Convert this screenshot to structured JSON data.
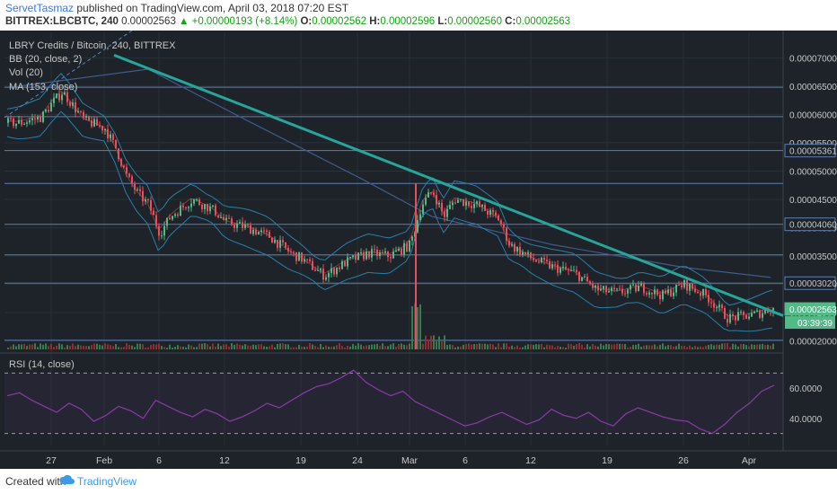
{
  "header": {
    "author": "ServetTasmaz",
    "published": "published on TradingView.com, April 03, 2018 07:20 EST",
    "symbol_interval": "BITTREX:LBCBTC, 240",
    "price": "0.00002563",
    "change": "▲ +0.00000193 (+8.14%)",
    "o_label": "O:",
    "o": "0.00002562",
    "h_label": "H:",
    "h": "0.00002596",
    "l_label": "L:",
    "l": "0.00002560",
    "c_label": "C:",
    "c": "0.00002563"
  },
  "legend": {
    "title": "LBRY Credits / Bitcoin, 240, BITTREX",
    "bb": "BB (20, close, 2)",
    "vol": "Vol (20)",
    "ma": "MA (153, close)",
    "rsi": "RSI (14, close)"
  },
  "footer": {
    "created": "Created with",
    "brand": "TradingView"
  },
  "price_axis": {
    "ticks": [
      "0.00007000",
      "0.00006500",
      "0.00006000",
      "0.00005500",
      "0.00005000",
      "0.00004500",
      "0.00004000",
      "0.00003500",
      "0.00003000",
      "0.00002500",
      "0.00002000"
    ],
    "boxes": [
      {
        "value": 5.361e-05,
        "label": "0.00005361",
        "style": "line"
      },
      {
        "value": 4.06e-05,
        "label": "0.00004060",
        "style": "line"
      },
      {
        "value": 3.02e-05,
        "label": "0.00003020",
        "style": "line"
      },
      {
        "value": 2.563e-05,
        "label": "0.00002563",
        "style": "price"
      }
    ],
    "countdown": "03:39:39"
  },
  "rsi_axis": {
    "ticks": [
      "60.0000",
      "40.0000"
    ]
  },
  "time_axis": {
    "labels": [
      "27",
      "Feb",
      "6",
      "12",
      "19",
      "24",
      "Mar",
      "6",
      "12",
      "19",
      "26",
      "Apr"
    ]
  },
  "chart_data": {
    "type": "candlestick",
    "symbol": "BITTREX:LBCBTC",
    "interval": "240",
    "ylim": [
      1.85e-05,
      7.45e-05
    ],
    "horizontal_levels": [
      6.48e-05,
      5.96e-05,
      5.361e-05,
      4.78e-05,
      4.06e-05,
      3.52e-05,
      3.02e-05,
      2.01e-05
    ],
    "trendline": {
      "from": {
        "x": "Jan 27",
        "y": 7.48e-05
      },
      "to": {
        "x": "Apr 3",
        "y": 2.53e-05
      }
    },
    "price_path": [
      {
        "x": "Jan 24",
        "y": 5.85e-05
      },
      {
        "x": "Jan 26",
        "y": 5.95e-05
      },
      {
        "x": "Jan 27",
        "y": 6.2e-05
      },
      {
        "x": "Jan 28",
        "y": 6.4e-05
      },
      {
        "x": "Jan 30",
        "y": 5.9e-05
      },
      {
        "x": "Feb 1",
        "y": 5.75e-05
      },
      {
        "x": "Feb 2",
        "y": 5.4e-05
      },
      {
        "x": "Feb 3",
        "y": 4.9e-05
      },
      {
        "x": "Feb 4",
        "y": 4.6e-05
      },
      {
        "x": "Feb 5",
        "y": 4.4e-05
      },
      {
        "x": "Feb 6",
        "y": 3.9e-05
      },
      {
        "x": "Feb 7",
        "y": 4.2e-05
      },
      {
        "x": "Feb 9",
        "y": 4.5e-05
      },
      {
        "x": "Feb 11",
        "y": 4.3e-05
      },
      {
        "x": "Feb 12",
        "y": 4.1e-05
      },
      {
        "x": "Feb 14",
        "y": 4e-05
      },
      {
        "x": "Feb 16",
        "y": 3.85e-05
      },
      {
        "x": "Feb 18",
        "y": 3.55e-05
      },
      {
        "x": "Feb 19",
        "y": 3.45e-05
      },
      {
        "x": "Feb 21",
        "y": 3.15e-05
      },
      {
        "x": "Feb 23",
        "y": 3.4e-05
      },
      {
        "x": "Feb 25",
        "y": 3.55e-05
      },
      {
        "x": "Feb 27",
        "y": 3.5e-05
      },
      {
        "x": "Feb 28",
        "y": 3.6e-05
      },
      {
        "x": "Mar 1",
        "y": 3.7e-05
      },
      {
        "x": "Mar 2",
        "y": 4.4e-05
      },
      {
        "x": "Mar 3",
        "y": 4.65e-05
      },
      {
        "x": "Mar 4",
        "y": 4.2e-05
      },
      {
        "x": "Mar 5",
        "y": 4.5e-05
      },
      {
        "x": "Mar 7",
        "y": 4.4e-05
      },
      {
        "x": "Mar 9",
        "y": 4.15e-05
      },
      {
        "x": "Mar 10",
        "y": 3.7e-05
      },
      {
        "x": "Mar 12",
        "y": 3.45e-05
      },
      {
        "x": "Mar 14",
        "y": 3.3e-05
      },
      {
        "x": "Mar 16",
        "y": 3.2e-05
      },
      {
        "x": "Mar 18",
        "y": 2.9e-05
      },
      {
        "x": "Mar 20",
        "y": 2.85e-05
      },
      {
        "x": "Mar 22",
        "y": 2.95e-05
      },
      {
        "x": "Mar 24",
        "y": 2.8e-05
      },
      {
        "x": "Mar 26",
        "y": 3e-05
      },
      {
        "x": "Mar 28",
        "y": 2.8e-05
      },
      {
        "x": "Mar 30",
        "y": 2.4e-05
      },
      {
        "x": "Apr 1",
        "y": 2.45e-05
      },
      {
        "x": "Apr 2",
        "y": 2.5e-05
      },
      {
        "x": "Apr 3",
        "y": 2.563e-05
      }
    ],
    "moving_average_153": [
      {
        "x": "Jan 24",
        "y": 6.5e-05
      },
      {
        "x": "Feb 5",
        "y": 6.8e-05
      },
      {
        "x": "Feb 14",
        "y": 5.9e-05
      },
      {
        "x": "Feb 24",
        "y": 4.9e-05
      },
      {
        "x": "Mar 3",
        "y": 4.2e-05
      },
      {
        "x": "Mar 14",
        "y": 3.7e-05
      },
      {
        "x": "Mar 26",
        "y": 3.3e-05
      },
      {
        "x": "Apr 3",
        "y": 3.12e-05
      }
    ],
    "rsi_14": {
      "ylim": [
        22,
        78
      ],
      "bands": [
        70,
        30
      ],
      "values": [
        55,
        57,
        52,
        48,
        44,
        50,
        46,
        38,
        42,
        48,
        45,
        40,
        52,
        48,
        44,
        41,
        46,
        43,
        38,
        41,
        45,
        50,
        47,
        52,
        57,
        61,
        63,
        67,
        72,
        64,
        59,
        55,
        58,
        51,
        47,
        43,
        39,
        35,
        37,
        41,
        44,
        40,
        36,
        39,
        46,
        42,
        40,
        44,
        38,
        35,
        43,
        47,
        44,
        41,
        39,
        38,
        33,
        30,
        36,
        44,
        50,
        58,
        62
      ]
    }
  }
}
